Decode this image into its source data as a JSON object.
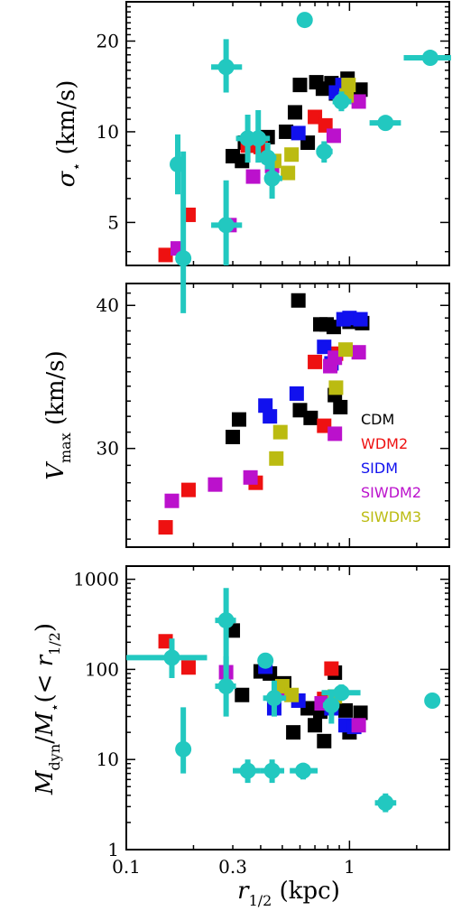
{
  "colors": {
    "CDM": "#000000",
    "WDM2": "#ee1111",
    "SIDM": "#1111ee",
    "SIWDM2": "#bb11cc",
    "SIWDM3": "#bbbb11",
    "obs": "#22c8c0"
  },
  "legend": [
    "CDM",
    "WDM2",
    "SIDM",
    "SIWDM2",
    "SIWDM3"
  ],
  "xlabel": "r_{1/2} (kpc)",
  "chart_data": [
    {
      "type": "scatter",
      "panel": "sigma",
      "ylabel": "σ⋆ (km/s)",
      "xscale": "log",
      "yscale": "log",
      "xlim": [
        0.1,
        2.8
      ],
      "ylim": [
        3.6,
        27
      ],
      "xticks": [],
      "yticks": [
        5,
        10,
        20
      ],
      "ytick_labels": [
        "5",
        "10",
        "20"
      ],
      "series": [
        {
          "name": "CDM",
          "points": [
            [
              0.3,
              8.3
            ],
            [
              0.33,
              8.0
            ],
            [
              0.34,
              9.2
            ],
            [
              0.38,
              9.0
            ],
            [
              0.43,
              9.6
            ],
            [
              0.52,
              10.0
            ],
            [
              0.57,
              11.6
            ],
            [
              0.6,
              14.3
            ],
            [
              0.65,
              9.2
            ],
            [
              0.71,
              14.6
            ],
            [
              0.76,
              13.9
            ],
            [
              0.83,
              14.5
            ],
            [
              0.87,
              13.4
            ],
            [
              0.91,
              14.2
            ],
            [
              0.98,
              15.0
            ],
            [
              1.12,
              13.8
            ]
          ]
        },
        {
          "name": "WDM2",
          "points": [
            [
              0.15,
              3.9
            ],
            [
              0.19,
              5.3
            ],
            [
              0.35,
              9.0
            ],
            [
              0.4,
              8.9
            ],
            [
              0.7,
              11.2
            ],
            [
              0.78,
              10.5
            ]
          ]
        },
        {
          "name": "SIDM",
          "points": [
            [
              0.59,
              9.9
            ],
            [
              0.87,
              13.5
            ],
            [
              0.93,
              14.3
            ]
          ]
        },
        {
          "name": "SIWDM2",
          "points": [
            [
              0.17,
              4.1
            ],
            [
              0.29,
              4.9
            ],
            [
              0.37,
              7.1
            ],
            [
              0.45,
              7.7
            ],
            [
              0.85,
              9.7
            ],
            [
              1.1,
              12.6
            ]
          ]
        },
        {
          "name": "SIWDM3",
          "points": [
            [
              0.46,
              8.0
            ],
            [
              0.53,
              7.3
            ],
            [
              0.55,
              8.4
            ],
            [
              0.97,
              13.2
            ],
            [
              0.99,
              14.3
            ]
          ]
        },
        {
          "name": "obs",
          "points": [
            {
              "x": 0.17,
              "y": 7.8,
              "xlo": 0.16,
              "xhi": 0.18,
              "ylo": 6.2,
              "yhi": 9.8
            },
            {
              "x": 0.18,
              "y": 3.8,
              "xlo": 0.17,
              "xhi": 0.19,
              "ylo": 2.5,
              "yhi": 8.6
            },
            {
              "x": 0.28,
              "y": 4.9,
              "xlo": 0.24,
              "xhi": 0.33,
              "ylo": 3.6,
              "yhi": 6.9
            },
            {
              "x": 0.28,
              "y": 16.4,
              "xlo": 0.24,
              "xhi": 0.33,
              "ylo": 13.5,
              "yhi": 20.3
            },
            {
              "x": 0.35,
              "y": 9.5,
              "xlo": 0.31,
              "xhi": 0.39,
              "ylo": 7.9,
              "yhi": 11.4
            },
            {
              "x": 0.39,
              "y": 9.5,
              "xlo": 0.35,
              "xhi": 0.44,
              "ylo": 7.9,
              "yhi": 11.8
            },
            {
              "x": 0.43,
              "y": 8.2,
              "xlo": 0.4,
              "xhi": 0.47,
              "ylo": 7.5,
              "yhi": 9.2
            },
            {
              "x": 0.45,
              "y": 7.0,
              "xlo": 0.42,
              "xhi": 0.5,
              "ylo": 6.0,
              "yhi": 8.2
            },
            {
              "x": 0.63,
              "y": 23.5,
              "xlo": 0.6,
              "xhi": 0.66,
              "ylo": 23.0,
              "yhi": 24.0
            },
            {
              "x": 0.77,
              "y": 8.6,
              "xlo": 0.71,
              "xhi": 0.84,
              "ylo": 7.9,
              "yhi": 9.3
            },
            {
              "x": 0.92,
              "y": 12.6,
              "xlo": 0.84,
              "xhi": 1.02,
              "ylo": 11.7,
              "yhi": 13.6
            },
            {
              "x": 1.45,
              "y": 10.7,
              "xlo": 1.23,
              "xhi": 1.7,
              "ylo": 10.2,
              "yhi": 11.2
            },
            {
              "x": 2.3,
              "y": 17.6,
              "xlo": 1.75,
              "xhi": 2.85,
              "ylo": 17.2,
              "yhi": 18.0
            }
          ]
        }
      ]
    },
    {
      "type": "scatter",
      "panel": "vmax",
      "ylabel": "Vmax (km/s)",
      "xscale": "log",
      "yscale": "log",
      "xlim": [
        0.1,
        2.8
      ],
      "ylim": [
        24.6,
        41.8
      ],
      "xticks": [],
      "yticks": [
        30,
        40
      ],
      "ytick_labels": [
        "30",
        "40"
      ],
      "series": [
        {
          "name": "CDM",
          "points": [
            [
              0.3,
              30.7
            ],
            [
              0.32,
              31.8
            ],
            [
              0.6,
              32.4
            ],
            [
              0.67,
              31.9
            ],
            [
              0.59,
              40.4
            ],
            [
              0.74,
              38.5
            ],
            [
              0.79,
              38.5
            ],
            [
              0.85,
              38.3
            ],
            [
              0.86,
              33.4
            ],
            [
              0.91,
              32.6
            ],
            [
              1.0,
              38.7
            ],
            [
              1.14,
              38.6
            ]
          ]
        },
        {
          "name": "WDM2",
          "points": [
            [
              0.15,
              25.6
            ],
            [
              0.19,
              27.6
            ],
            [
              0.38,
              28.0
            ],
            [
              0.7,
              35.7
            ],
            [
              0.77,
              31.4
            ],
            [
              0.87,
              36.3
            ]
          ]
        },
        {
          "name": "SIDM",
          "points": [
            [
              0.42,
              32.7
            ],
            [
              0.44,
              32.0
            ],
            [
              0.58,
              33.5
            ],
            [
              0.77,
              36.8
            ],
            [
              0.83,
              35.6
            ],
            [
              0.94,
              38.9
            ],
            [
              1.0,
              39.0
            ],
            [
              1.12,
              38.9
            ]
          ]
        },
        {
          "name": "SIWDM2",
          "points": [
            [
              0.16,
              27.0
            ],
            [
              0.25,
              27.9
            ],
            [
              0.36,
              28.3
            ],
            [
              0.82,
              35.4
            ],
            [
              0.86,
              36.0
            ],
            [
              0.86,
              30.9
            ],
            [
              1.1,
              36.4
            ]
          ]
        },
        {
          "name": "SIWDM3",
          "points": [
            [
              0.47,
              29.4
            ],
            [
              0.49,
              31.0
            ],
            [
              0.87,
              33.9
            ],
            [
              0.96,
              36.6
            ]
          ]
        }
      ],
      "legend_position": "right"
    },
    {
      "type": "scatter",
      "panel": "mratio",
      "ylabel": "Mdyn/M⋆(< r1/2)",
      "xscale": "log",
      "yscale": "log",
      "xlim": [
        0.1,
        2.8
      ],
      "ylim": [
        1,
        1400
      ],
      "xticks": [
        0.1,
        0.3,
        1
      ],
      "xtick_labels": [
        "0.1",
        "0.3",
        "1"
      ],
      "yticks": [
        1,
        10,
        100,
        1000
      ],
      "ytick_labels": [
        "1",
        "10",
        "100",
        "1000"
      ],
      "series": [
        {
          "name": "CDM",
          "points": [
            [
              0.3,
              270
            ],
            [
              0.33,
              52
            ],
            [
              0.4,
              95
            ],
            [
              0.44,
              90
            ],
            [
              0.51,
              70
            ],
            [
              0.56,
              20
            ],
            [
              0.65,
              37
            ],
            [
              0.7,
              24
            ],
            [
              0.74,
              34
            ],
            [
              0.77,
              16
            ],
            [
              0.84,
              47
            ],
            [
              0.86,
              92
            ],
            [
              0.96,
              35
            ],
            [
              1.0,
              20
            ],
            [
              1.12,
              33
            ]
          ]
        },
        {
          "name": "WDM2",
          "points": [
            [
              0.15,
              205
            ],
            [
              0.19,
              105
            ],
            [
              0.77,
              47
            ],
            [
              0.83,
              102
            ]
          ]
        },
        {
          "name": "SIDM",
          "points": [
            [
              0.42,
              107
            ],
            [
              0.46,
              37
            ],
            [
              0.59,
              45
            ],
            [
              0.83,
              37
            ],
            [
              0.96,
              24
            ],
            [
              1.05,
              23
            ]
          ]
        },
        {
          "name": "SIWDM2",
          "points": [
            [
              0.28,
              93
            ],
            [
              0.49,
              55
            ],
            [
              0.75,
              42
            ],
            [
              1.1,
              24
            ]
          ]
        },
        {
          "name": "SIWDM3",
          "points": [
            [
              0.5,
              65
            ],
            [
              0.55,
              52
            ],
            [
              0.86,
              50
            ]
          ]
        },
        {
          "name": "obs",
          "points": [
            {
              "x": 0.16,
              "y": 135,
              "xlo": 0.1,
              "xhi": 0.23,
              "ylo": 80,
              "yhi": 220
            },
            {
              "x": 0.18,
              "y": 13,
              "xlo": 0.17,
              "xhi": 0.19,
              "ylo": 7,
              "yhi": 38
            },
            {
              "x": 0.28,
              "y": 350,
              "xlo": 0.25,
              "xhi": 0.31,
              "ylo": 100,
              "yhi": 800
            },
            {
              "x": 0.28,
              "y": 65,
              "xlo": 0.25,
              "xhi": 0.31,
              "ylo": 30,
              "yhi": 140
            },
            {
              "x": 0.35,
              "y": 7.5,
              "xlo": 0.3,
              "xhi": 0.4,
              "ylo": 5.5,
              "yhi": 10
            },
            {
              "x": 0.42,
              "y": 125,
              "xlo": 0.39,
              "xhi": 0.45,
              "ylo": 110,
              "yhi": 145
            },
            {
              "x": 0.45,
              "y": 7.5,
              "xlo": 0.4,
              "xhi": 0.51,
              "ylo": 5.5,
              "yhi": 10
            },
            {
              "x": 0.46,
              "y": 48,
              "xlo": 0.41,
              "xhi": 0.52,
              "ylo": 30,
              "yhi": 75
            },
            {
              "x": 0.62,
              "y": 7.5,
              "xlo": 0.54,
              "xhi": 0.72,
              "ylo": 6,
              "yhi": 9
            },
            {
              "x": 0.83,
              "y": 40,
              "xlo": 0.76,
              "xhi": 0.9,
              "ylo": 25,
              "yhi": 60
            },
            {
              "x": 0.92,
              "y": 55,
              "xlo": 0.75,
              "xhi": 1.12,
              "ylo": 45,
              "yhi": 68
            },
            {
              "x": 1.45,
              "y": 3.3,
              "xlo": 1.3,
              "xhi": 1.62,
              "ylo": 2.6,
              "yhi": 4.2
            },
            {
              "x": 2.35,
              "y": 45,
              "xlo": 2.25,
              "xhi": 2.45,
              "ylo": 40,
              "yhi": 52
            }
          ]
        }
      ]
    }
  ]
}
